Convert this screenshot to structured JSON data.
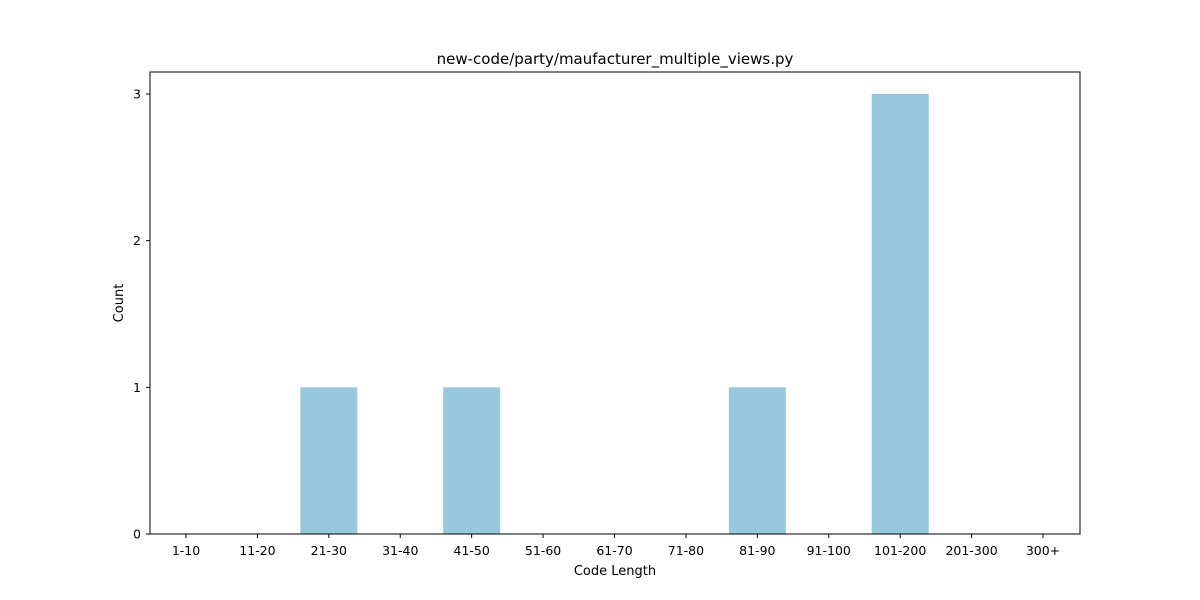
{
  "chart_data": {
    "type": "bar",
    "title": "new-code/party/maufacturer_multiple_views.py",
    "xlabel": "Code Length",
    "ylabel": "Count",
    "categories": [
      "1-10",
      "11-20",
      "21-30",
      "31-40",
      "41-50",
      "51-60",
      "61-70",
      "71-80",
      "81-90",
      "91-100",
      "101-200",
      "201-300",
      "300+"
    ],
    "values": [
      0,
      0,
      1,
      0,
      1,
      0,
      0,
      0,
      1,
      0,
      3,
      0,
      0
    ],
    "yticks": [
      0,
      1,
      2,
      3
    ],
    "ylim": [
      0,
      3.15
    ],
    "bar_color": "#96c9dc",
    "grid": false,
    "legend": "none"
  }
}
